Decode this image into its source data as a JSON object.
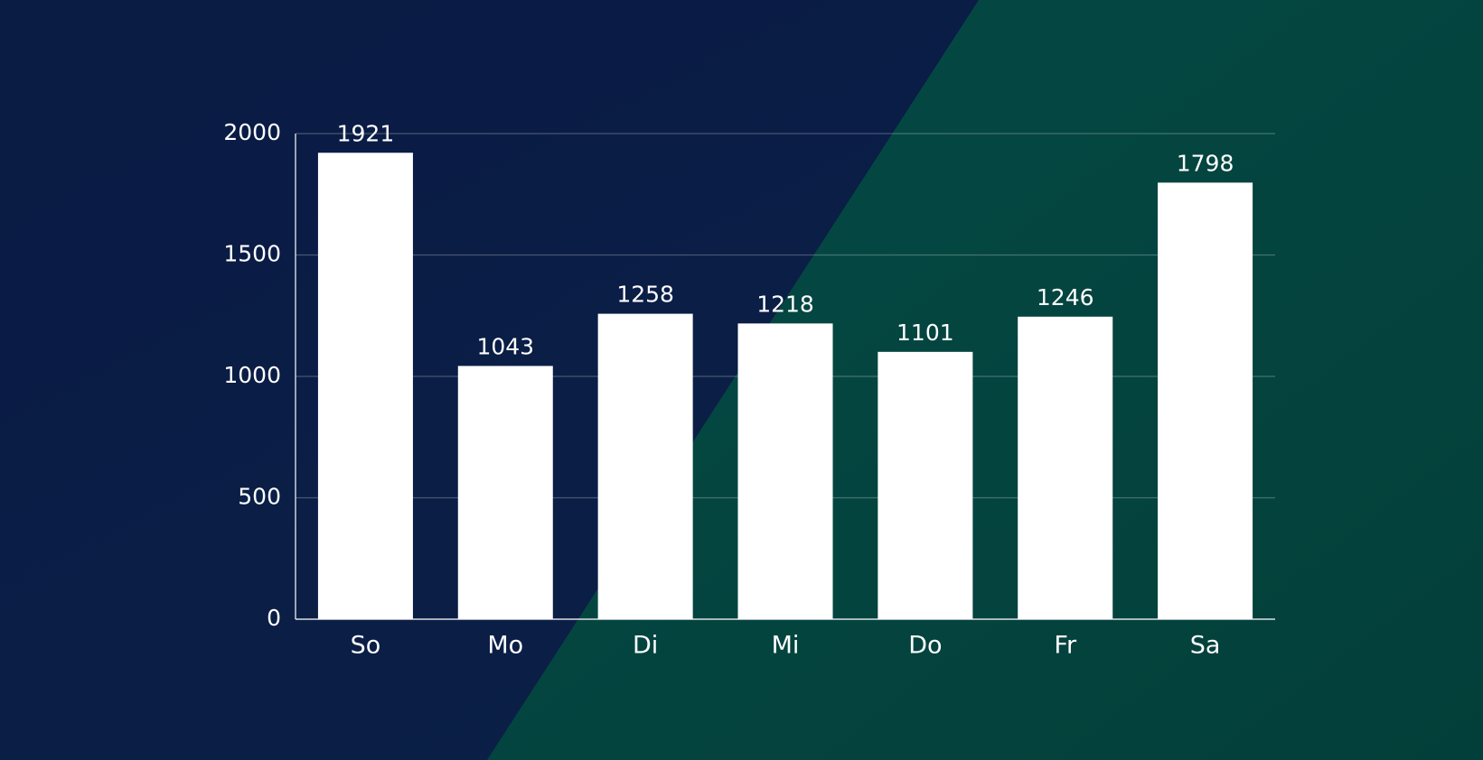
{
  "chart_data": {
    "type": "bar",
    "categories": [
      "So",
      "Mo",
      "Di",
      "Mi",
      "Do",
      "Fr",
      "Sa"
    ],
    "values": [
      1921,
      1043,
      1258,
      1218,
      1101,
      1246,
      1798
    ],
    "color": "#ffffff",
    "ylim": [
      0,
      2000
    ],
    "yticks": [
      0,
      500,
      1000,
      1500,
      2000
    ],
    "grid": true
  }
}
